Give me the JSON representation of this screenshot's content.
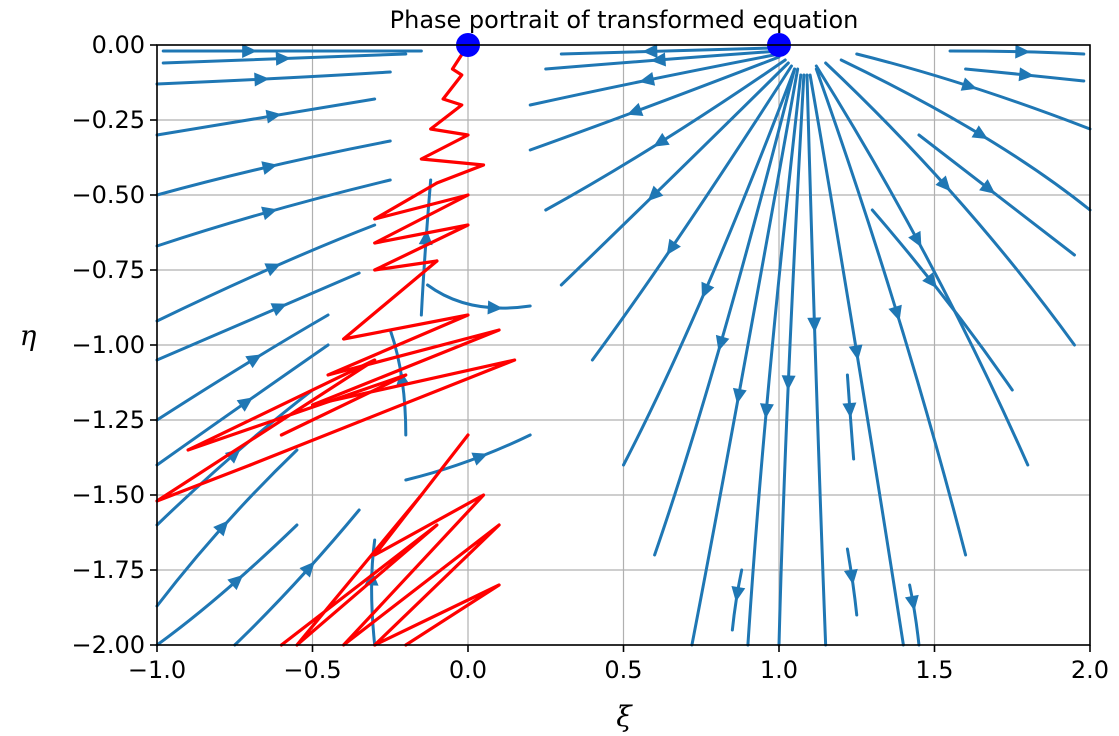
{
  "chart_data": {
    "type": "streamplot",
    "title": "Phase portrait of transformed equation",
    "xlabel": "ξ",
    "ylabel": "η",
    "xlim": [
      -1.0,
      2.0
    ],
    "ylim": [
      -2.0,
      0.0
    ],
    "xticks": [
      -1.0,
      -0.5,
      0.0,
      0.5,
      1.0,
      1.5,
      2.0
    ],
    "xtick_labels": [
      "−1.0",
      "−0.5",
      "0.0",
      "0.5",
      "1.0",
      "1.5",
      "2.0"
    ],
    "yticks": [
      0.0,
      -0.25,
      -0.5,
      -0.75,
      -1.0,
      -1.25,
      -1.5,
      -1.75,
      -2.0
    ],
    "ytick_labels": [
      "0.00",
      "−0.25",
      "−0.50",
      "−0.75",
      "−1.00",
      "−1.25",
      "−1.50",
      "−1.75",
      "−2.00"
    ],
    "grid": true,
    "colors": {
      "stream": "#1f77b4",
      "trajectory": "#ff0000",
      "equilibrium": "#0000ff",
      "grid": "#b0b0b0"
    },
    "equilibria": [
      {
        "x": 0.0,
        "y": 0.0
      },
      {
        "x": 1.0,
        "y": 0.0
      }
    ],
    "streamlines": [
      {
        "points": [
          [
            -0.98,
            -0.02
          ],
          [
            -0.5,
            -0.02
          ],
          [
            -0.15,
            -0.02
          ]
        ],
        "arrow_at": 0.3,
        "dir": 1
      },
      {
        "points": [
          [
            -0.98,
            -0.06
          ],
          [
            -0.6,
            -0.045
          ],
          [
            -0.2,
            -0.03
          ]
        ],
        "arrow_at": 0.5,
        "dir": 1
      },
      {
        "points": [
          [
            -1.0,
            -0.13
          ],
          [
            -0.55,
            -0.11
          ],
          [
            -0.25,
            -0.09
          ]
        ],
        "arrow_at": 0.4,
        "dir": 1
      },
      {
        "points": [
          [
            -1.0,
            -0.3
          ],
          [
            -0.6,
            -0.23
          ],
          [
            -0.3,
            -0.18
          ]
        ],
        "arrow_at": 0.5,
        "dir": 1
      },
      {
        "points": [
          [
            -1.0,
            -0.5
          ],
          [
            -0.65,
            -0.4
          ],
          [
            -0.25,
            -0.32
          ]
        ],
        "arrow_at": 0.5,
        "dir": 1
      },
      {
        "points": [
          [
            -1.0,
            -0.67
          ],
          [
            -0.65,
            -0.55
          ],
          [
            -0.25,
            -0.45
          ]
        ],
        "arrow_at": 0.5,
        "dir": 1
      },
      {
        "points": [
          [
            -1.0,
            -0.92
          ],
          [
            -0.6,
            -0.72
          ],
          [
            -0.3,
            -0.6
          ]
        ],
        "arrow_at": 0.5,
        "dir": 1
      },
      {
        "points": [
          [
            -1.0,
            -1.05
          ],
          [
            -0.6,
            -0.87
          ],
          [
            -0.35,
            -0.76
          ]
        ],
        "arrow_at": 0.55,
        "dir": 1
      },
      {
        "points": [
          [
            -1.0,
            -1.25
          ],
          [
            -0.7,
            -1.05
          ],
          [
            -0.45,
            -0.9
          ]
        ],
        "arrow_at": 0.55,
        "dir": 1
      },
      {
        "points": [
          [
            -1.0,
            -1.4
          ],
          [
            -0.7,
            -1.18
          ],
          [
            -0.45,
            -1.0
          ]
        ],
        "arrow_at": 0.5,
        "dir": 1
      },
      {
        "points": [
          [
            -1.0,
            -1.6
          ],
          [
            -0.75,
            -1.35
          ],
          [
            -0.5,
            -1.15
          ]
        ],
        "arrow_at": 0.5,
        "dir": 1
      },
      {
        "points": [
          [
            -1.0,
            -1.87
          ],
          [
            -0.8,
            -1.6
          ],
          [
            -0.55,
            -1.35
          ]
        ],
        "arrow_at": 0.5,
        "dir": 1
      },
      {
        "points": [
          [
            -1.0,
            -2.0
          ],
          [
            -0.8,
            -1.85
          ],
          [
            -0.55,
            -1.6
          ]
        ],
        "arrow_at": 0.6,
        "dir": 1
      },
      {
        "points": [
          [
            -0.75,
            -2.0
          ],
          [
            -0.55,
            -1.8
          ],
          [
            -0.35,
            -1.55
          ]
        ],
        "arrow_at": 0.6,
        "dir": 1
      },
      {
        "points": [
          [
            0.98,
            -0.01
          ],
          [
            0.6,
            -0.02
          ],
          [
            0.3,
            -0.03
          ]
        ],
        "arrow_at": 0.55,
        "dir": 1
      },
      {
        "points": [
          [
            1.0,
            -0.02
          ],
          [
            0.6,
            -0.05
          ],
          [
            0.25,
            -0.08
          ]
        ],
        "arrow_at": 0.5,
        "dir": 1
      },
      {
        "points": [
          [
            1.0,
            -0.03
          ],
          [
            0.55,
            -0.12
          ],
          [
            0.2,
            -0.2
          ]
        ],
        "arrow_at": 0.5,
        "dir": 1
      },
      {
        "points": [
          [
            1.0,
            -0.04
          ],
          [
            0.55,
            -0.22
          ],
          [
            0.2,
            -0.35
          ]
        ],
        "arrow_at": 0.55,
        "dir": 1
      },
      {
        "points": [
          [
            1.02,
            -0.05
          ],
          [
            0.6,
            -0.35
          ],
          [
            0.25,
            -0.55
          ]
        ],
        "arrow_at": 0.5,
        "dir": 1
      },
      {
        "points": [
          [
            1.03,
            -0.06
          ],
          [
            0.6,
            -0.5
          ],
          [
            0.3,
            -0.8
          ]
        ],
        "arrow_at": 0.55,
        "dir": 1
      },
      {
        "points": [
          [
            1.04,
            -0.07
          ],
          [
            0.65,
            -0.7
          ],
          [
            0.4,
            -1.05
          ]
        ],
        "arrow_at": 0.55,
        "dir": 1
      },
      {
        "points": [
          [
            1.05,
            -0.08
          ],
          [
            0.75,
            -0.9
          ],
          [
            0.5,
            -1.4
          ]
        ],
        "arrow_at": 0.5,
        "dir": 1
      },
      {
        "points": [
          [
            1.05,
            -0.08
          ],
          [
            0.8,
            -1.1
          ],
          [
            0.6,
            -1.7
          ]
        ],
        "arrow_at": 0.5,
        "dir": 1
      },
      {
        "points": [
          [
            1.06,
            -0.08
          ],
          [
            0.85,
            -1.3
          ],
          [
            0.72,
            -2.0
          ]
        ],
        "arrow_at": 0.5,
        "dir": 1
      },
      {
        "points": [
          [
            1.07,
            -0.1
          ],
          [
            0.95,
            -1.2
          ],
          [
            0.9,
            -2.0
          ]
        ],
        "arrow_at": 0.55,
        "dir": 1
      },
      {
        "points": [
          [
            1.08,
            -0.1
          ],
          [
            1.02,
            -1.2
          ],
          [
            1.0,
            -2.0
          ]
        ],
        "arrow_at": 0.5,
        "dir": 1
      },
      {
        "points": [
          [
            1.09,
            -0.1
          ],
          [
            1.12,
            -1.2
          ],
          [
            1.15,
            -2.0
          ]
        ],
        "arrow_at": 0.4,
        "dir": 1
      },
      {
        "points": [
          [
            1.1,
            -0.1
          ],
          [
            1.25,
            -1.0
          ],
          [
            1.4,
            -2.0
          ]
        ],
        "arrow_at": 0.5,
        "dir": 1
      },
      {
        "points": [
          [
            1.12,
            -0.08
          ],
          [
            1.4,
            -0.9
          ],
          [
            1.6,
            -1.7
          ]
        ],
        "arrow_at": 0.5,
        "dir": 1
      },
      {
        "points": [
          [
            1.12,
            -0.07
          ],
          [
            1.5,
            -0.7
          ],
          [
            1.8,
            -1.4
          ]
        ],
        "arrow_at": 0.45,
        "dir": 1
      },
      {
        "points": [
          [
            1.15,
            -0.06
          ],
          [
            1.6,
            -0.5
          ],
          [
            1.95,
            -1.0
          ]
        ],
        "arrow_at": 0.45,
        "dir": 1
      },
      {
        "points": [
          [
            1.2,
            -0.05
          ],
          [
            1.7,
            -0.3
          ],
          [
            2.0,
            -0.55
          ]
        ],
        "arrow_at": 0.5,
        "dir": 1
      },
      {
        "points": [
          [
            1.25,
            -0.03
          ],
          [
            1.6,
            -0.12
          ],
          [
            2.0,
            -0.28
          ]
        ],
        "arrow_at": 0.5,
        "dir": 1
      },
      {
        "points": [
          [
            1.6,
            -0.08
          ],
          [
            1.8,
            -0.1
          ],
          [
            1.98,
            -0.12
          ]
        ],
        "arrow_at": 0.5,
        "dir": 1
      },
      {
        "points": [
          [
            1.55,
            -0.02
          ],
          [
            1.8,
            -0.02
          ],
          [
            1.98,
            -0.03
          ]
        ],
        "arrow_at": 0.5,
        "dir": 1
      },
      {
        "points": [
          [
            1.45,
            -0.3
          ],
          [
            1.7,
            -0.5
          ],
          [
            1.95,
            -0.7
          ]
        ],
        "arrow_at": 0.45,
        "dir": 1
      },
      {
        "points": [
          [
            1.3,
            -0.55
          ],
          [
            1.55,
            -0.85
          ],
          [
            1.75,
            -1.15
          ]
        ],
        "arrow_at": 0.4,
        "dir": 1
      },
      {
        "points": [
          [
            1.22,
            -1.1
          ],
          [
            1.23,
            -1.25
          ],
          [
            1.24,
            -1.38
          ]
        ],
        "arrow_at": 0.4,
        "dir": 1
      },
      {
        "points": [
          [
            1.22,
            -1.68
          ],
          [
            1.24,
            -1.8
          ],
          [
            1.25,
            -1.9
          ]
        ],
        "arrow_at": 0.4,
        "dir": 1
      },
      {
        "points": [
          [
            1.42,
            -1.8
          ],
          [
            1.44,
            -1.9
          ],
          [
            1.45,
            -2.0
          ]
        ],
        "arrow_at": 0.3,
        "dir": 1
      },
      {
        "points": [
          [
            0.88,
            -1.75
          ],
          [
            0.86,
            -1.85
          ],
          [
            0.85,
            -1.95
          ]
        ],
        "arrow_at": 0.4,
        "dir": 1
      },
      {
        "points": [
          [
            -0.15,
            -0.9
          ],
          [
            -0.14,
            -0.7
          ],
          [
            -0.12,
            -0.45
          ]
        ],
        "arrow_at": 0.6,
        "dir": 1
      },
      {
        "points": [
          [
            -0.13,
            -0.8
          ],
          [
            0.0,
            -0.9
          ],
          [
            0.2,
            -0.87
          ]
        ],
        "arrow_at": 0.7,
        "dir": 1
      },
      {
        "points": [
          [
            -0.2,
            -1.3
          ],
          [
            -0.2,
            -1.1
          ],
          [
            -0.25,
            -0.95
          ]
        ],
        "arrow_at": 0.5,
        "dir": 1
      },
      {
        "points": [
          [
            -0.2,
            -1.45
          ],
          [
            0.0,
            -1.4
          ],
          [
            0.2,
            -1.3
          ]
        ],
        "arrow_at": 0.6,
        "dir": 1
      },
      {
        "points": [
          [
            -0.3,
            -2.0
          ],
          [
            -0.32,
            -1.8
          ],
          [
            -0.3,
            -1.65
          ]
        ],
        "arrow_at": 0.6,
        "dir": 1
      }
    ],
    "trajectory_series": [
      {
        "name": "",
        "segments": [
          [
            [
              0.0,
              0.0
            ],
            [
              -0.05,
              -0.08
            ],
            [
              -0.02,
              -0.1
            ],
            [
              -0.08,
              -0.18
            ],
            [
              -0.02,
              -0.2
            ],
            [
              -0.12,
              -0.28
            ],
            [
              0.0,
              -0.3
            ],
            [
              -0.15,
              -0.38
            ],
            [
              0.05,
              -0.4
            ],
            [
              -0.1,
              -0.46
            ]
          ],
          [
            [
              -0.1,
              -0.46
            ],
            [
              -0.3,
              -0.58
            ],
            [
              0.0,
              -0.5
            ],
            [
              -0.3,
              -0.66
            ],
            [
              0.0,
              -0.6
            ],
            [
              -0.3,
              -0.75
            ],
            [
              -0.1,
              -0.72
            ]
          ],
          [
            [
              -0.1,
              -0.72
            ],
            [
              -0.4,
              -0.98
            ],
            [
              0.0,
              -0.9
            ],
            [
              -0.45,
              -1.1
            ],
            [
              0.1,
              -0.95
            ],
            [
              -0.5,
              -1.2
            ],
            [
              0.15,
              -1.05
            ],
            [
              -0.7,
              -1.4
            ]
          ],
          [
            [
              -0.7,
              -1.4
            ],
            [
              -1.0,
              -1.52
            ],
            [
              -0.3,
              -1.05
            ],
            [
              -0.9,
              -1.35
            ],
            [
              -0.2,
              -1.1
            ],
            [
              -0.6,
              -1.3
            ]
          ],
          [
            [
              0.0,
              -1.3
            ],
            [
              -0.3,
              -1.7
            ],
            [
              0.05,
              -1.5
            ],
            [
              -0.4,
              -2.0
            ],
            [
              0.1,
              -1.6
            ],
            [
              -0.3,
              -2.0
            ],
            [
              0.1,
              -1.8
            ],
            [
              -0.2,
              -2.0
            ]
          ],
          [
            [
              -0.15,
              -1.5
            ],
            [
              -0.55,
              -2.0
            ],
            [
              -0.1,
              -1.6
            ],
            [
              -0.6,
              -2.0
            ]
          ]
        ]
      }
    ]
  }
}
